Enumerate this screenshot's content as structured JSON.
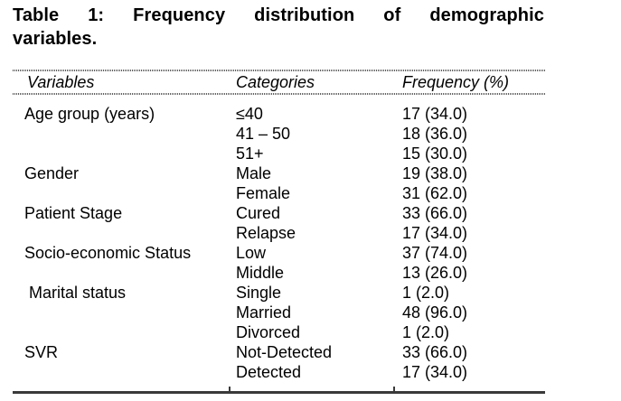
{
  "caption": {
    "line1": "Table 1: Frequency distribution of demographic",
    "line2": "variables."
  },
  "table": {
    "columns": {
      "variables": "Variables",
      "categories": "Categories",
      "frequency": "Frequency (%)"
    },
    "rows": [
      {
        "variable": "Age group (years)",
        "category": "≤40",
        "frequency": "17 (34.0)"
      },
      {
        "variable": "",
        "category": "41 – 50",
        "frequency": "18 (36.0)"
      },
      {
        "variable": "",
        "category": "51+",
        "frequency": "15 (30.0)"
      },
      {
        "variable": "Gender",
        "category": "Male",
        "frequency": "19 (38.0)"
      },
      {
        "variable": "",
        "category": "Female",
        "frequency": "31 (62.0)"
      },
      {
        "variable": "Patient Stage",
        "category": "Cured",
        "frequency": "33 (66.0)"
      },
      {
        "variable": "",
        "category": "Relapse",
        "frequency": "17 (34.0)"
      },
      {
        "variable": "Socio-economic Status",
        "category": "Low",
        "frequency": "37 (74.0)"
      },
      {
        "variable": "",
        "category": "Middle",
        "frequency": "13 (26.0)"
      },
      {
        "variable": " Marital status",
        "category": "Single",
        "frequency": "1 (2.0)"
      },
      {
        "variable": "",
        "category": "Married",
        "frequency": "48 (96.0)"
      },
      {
        "variable": "",
        "category": "Divorced",
        "frequency": "1 (2.0)"
      },
      {
        "variable": "SVR",
        "category": "Not-Detected",
        "frequency": "33 (66.0)"
      },
      {
        "variable": "",
        "category": "Detected",
        "frequency": "17 (34.0)"
      }
    ]
  }
}
